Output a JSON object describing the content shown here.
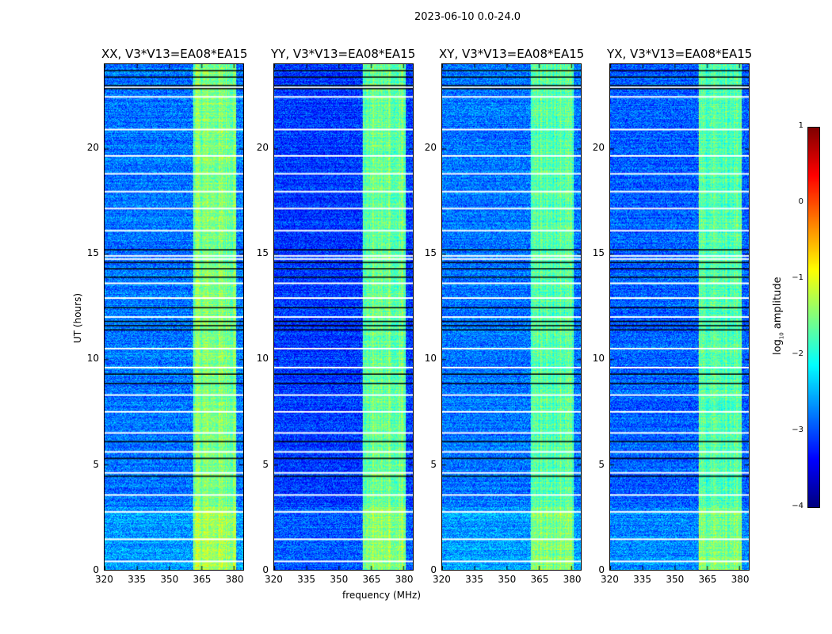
{
  "chart_data": {
    "type": "heatmap",
    "title": "2023-06-10 0.0-24.0",
    "xlabel": "frequency (MHz)",
    "ylabel": "UT (hours)",
    "xlim": [
      320,
      384.5
    ],
    "ylim": [
      0,
      24
    ],
    "xticks": [
      "320",
      "335",
      "350",
      "365",
      "380"
    ],
    "xtick_values": [
      320,
      335,
      350,
      365,
      380
    ],
    "yticks": [
      "0",
      "5",
      "10",
      "15",
      "20"
    ],
    "ytick_values": [
      0,
      5,
      10,
      15,
      20
    ],
    "colormap": "jet",
    "colorbar": {
      "label_main": "log",
      "label_sub": "10",
      "label_rest": " amplitude",
      "range": [
        -4,
        1
      ],
      "ticks": [
        "1",
        "0",
        "−1",
        "−2",
        "−3",
        "−4"
      ],
      "tick_values": [
        1,
        0,
        -1,
        -2,
        -3,
        -4
      ]
    },
    "panels": [
      {
        "title": "XX, V3*V13=EA08*EA15",
        "baseline": -2.8,
        "band_level": -1.5
      },
      {
        "title": "YY, V3*V13=EA08*EA15",
        "baseline": -3.1,
        "band_level": -1.6
      },
      {
        "title": "XY, V3*V13=EA08*EA15",
        "baseline": -2.8,
        "band_level": -1.7
      },
      {
        "title": "YX, V3*V13=EA08*EA15",
        "baseline": -2.9,
        "band_level": -1.7
      }
    ],
    "rfi_band_mhz": [
      361,
      381
    ],
    "flagged_hours_white": [
      22.9,
      22.45,
      20.9,
      19.65,
      18.8,
      17.95,
      17.15,
      16.1,
      14.9,
      14.75,
      13.6,
      12.9,
      12.0,
      10.5,
      9.6,
      8.3,
      7.5,
      6.5,
      5.6,
      4.6,
      3.55,
      2.75,
      1.45,
      0.4
    ],
    "flagged_hours_black": [
      23.7,
      23.4,
      23.0,
      22.85,
      15.2,
      14.6,
      14.3,
      13.9,
      12.45,
      11.8,
      11.6,
      11.4,
      9.3,
      8.85,
      6.1,
      5.3,
      4.45
    ]
  }
}
